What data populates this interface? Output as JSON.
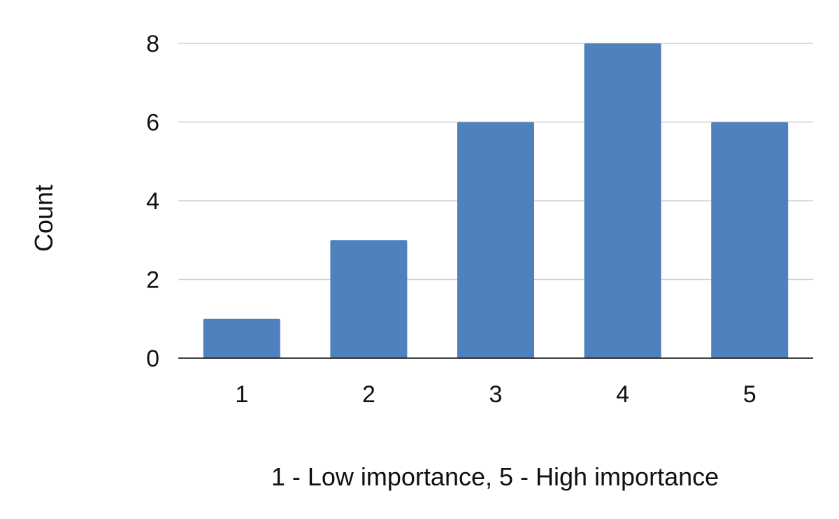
{
  "chart_data": {
    "type": "bar",
    "title": "",
    "xlabel": "1 - Low importance, 5 - High importance",
    "ylabel": "Count",
    "categories": [
      "1",
      "2",
      "3",
      "4",
      "5"
    ],
    "values": [
      1,
      3,
      6,
      8,
      6
    ],
    "ylim": [
      0,
      8
    ],
    "yticks": [
      0,
      2,
      4,
      6,
      8
    ],
    "grid": true,
    "legend": "none",
    "bar_color": "#4f81bd"
  }
}
